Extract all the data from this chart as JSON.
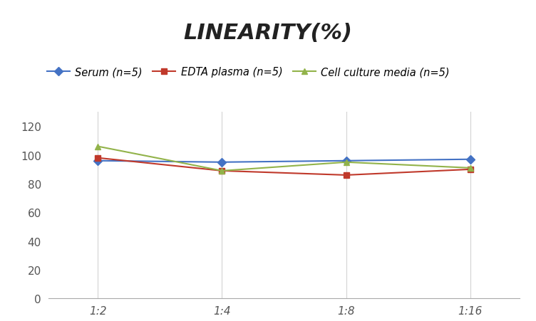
{
  "title": "LINEARITY(%)",
  "x_labels": [
    "1:2",
    "1:4",
    "1:8",
    "1:16"
  ],
  "series": [
    {
      "label": "Serum (n=5)",
      "values": [
        96,
        95,
        96,
        97
      ],
      "color": "#4472C4",
      "marker": "D",
      "linewidth": 1.5
    },
    {
      "label": "EDTA plasma (n=5)",
      "values": [
        98,
        89,
        86,
        90
      ],
      "color": "#C0392B",
      "marker": "s",
      "linewidth": 1.5
    },
    {
      "label": "Cell culture media (n=5)",
      "values": [
        106,
        89,
        95,
        91
      ],
      "color": "#92B34A",
      "marker": "^",
      "linewidth": 1.5
    }
  ],
  "ylim": [
    0,
    130
  ],
  "yticks": [
    0,
    20,
    40,
    60,
    80,
    100,
    120
  ],
  "background_color": "#FFFFFF",
  "grid_color": "#D3D3D3",
  "title_fontsize": 22,
  "legend_fontsize": 10.5,
  "tick_fontsize": 11
}
